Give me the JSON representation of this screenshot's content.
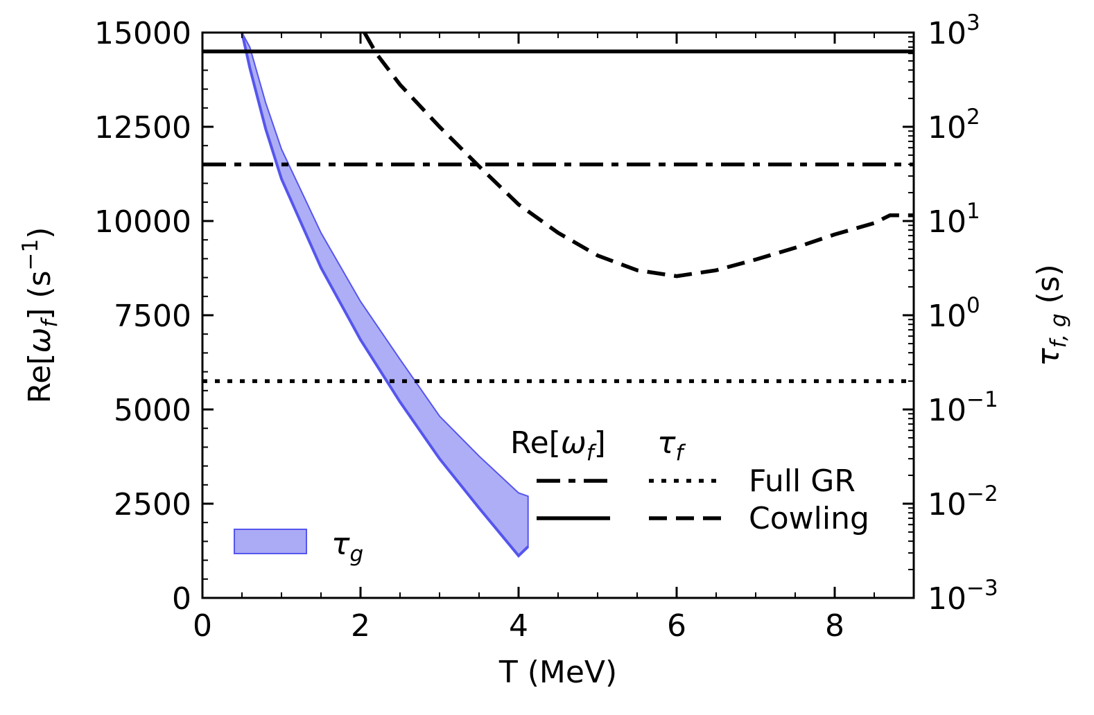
{
  "chart_data": {
    "type": "line",
    "x_axis": {
      "label": "T (MeV)",
      "range": [
        0,
        9
      ],
      "ticks": [
        {
          "value": 0,
          "label": "0"
        },
        {
          "value": 2,
          "label": "2"
        },
        {
          "value": 4,
          "label": "4"
        },
        {
          "value": 6,
          "label": "6"
        },
        {
          "value": 8,
          "label": "8"
        }
      ]
    },
    "y_left": {
      "label": "Re[ω_f] (s⁻¹)",
      "label_parts": {
        "pre": "Re[",
        "omega": "ω",
        "sub": "f",
        "mid": "] (s",
        "sup": "−1",
        "post": ")"
      },
      "range": [
        0,
        15000
      ],
      "ticks": [
        {
          "value": 0,
          "label": "0"
        },
        {
          "value": 2500,
          "label": "2500"
        },
        {
          "value": 5000,
          "label": "5000"
        },
        {
          "value": 7500,
          "label": "7500"
        },
        {
          "value": 10000,
          "label": "10000"
        },
        {
          "value": 12500,
          "label": "12500"
        },
        {
          "value": 15000,
          "label": "15000"
        }
      ]
    },
    "y_right": {
      "label": "τ_{f,g} (s)",
      "label_parts": {
        "tau": "τ",
        "sub": "f, g",
        "post": " (s)"
      },
      "scale": "log",
      "range": [
        0.001,
        1000
      ],
      "ticks": [
        {
          "value": 0.001,
          "base": "10",
          "exp": "−3"
        },
        {
          "value": 0.01,
          "base": "10",
          "exp": "−2"
        },
        {
          "value": 0.1,
          "base": "10",
          "exp": "−1"
        },
        {
          "value": 1,
          "base": "10",
          "exp": "0"
        },
        {
          "value": 10,
          "base": "10",
          "exp": "1"
        },
        {
          "value": 100,
          "base": "10",
          "exp": "2"
        },
        {
          "value": 1000,
          "base": "10",
          "exp": "3"
        }
      ]
    },
    "series": [
      {
        "name": "Re[ω_f] Full GR",
        "axis": "left",
        "style": "dashdot",
        "x": [
          0,
          9
        ],
        "y": [
          11500,
          11500
        ]
      },
      {
        "name": "Re[ω_f] Cowling",
        "axis": "left",
        "style": "solid",
        "x": [
          0,
          9
        ],
        "y": [
          14500,
          14500
        ]
      },
      {
        "name": "τ_f Full GR",
        "axis": "right",
        "style": "dotted",
        "x": [
          0,
          9
        ],
        "y": [
          0.2,
          0.2
        ]
      },
      {
        "name": "τ_f Cowling",
        "axis": "right",
        "style": "dashed",
        "x": [
          2.05,
          2.2,
          2.5,
          3.0,
          3.5,
          4.0,
          4.5,
          5.0,
          5.5,
          6.0,
          6.5,
          7.0,
          7.5,
          8.0,
          8.5,
          8.7,
          9.0
        ],
        "y": [
          1000,
          600,
          280,
          100,
          38,
          15,
          7.5,
          4.3,
          3.0,
          2.6,
          3.0,
          3.9,
          5.2,
          7.2,
          9.5,
          11.5,
          11.5
        ]
      }
    ],
    "bands": [
      {
        "name": "τ_g",
        "axis": "right",
        "color": "#6b6bf2",
        "x": [
          0.5,
          0.6,
          0.8,
          1.0,
          1.5,
          2.0,
          2.5,
          3.0,
          3.5,
          4.0,
          4.12
        ],
        "lower": [
          1000,
          420,
          95,
          28,
          3.2,
          0.55,
          0.12,
          0.03,
          0.009,
          0.0028,
          0.0035
        ],
        "upper": [
          1000,
          700,
          180,
          58,
          7.5,
          1.4,
          0.34,
          0.085,
          0.032,
          0.013,
          0.012
        ]
      }
    ],
    "legend": {
      "position": "bottom-right",
      "header_omega_pre": "Re[",
      "header_omega_sym": "ω",
      "header_omega_sub": "f",
      "header_omega_post": "]",
      "header_tau_sym": "τ",
      "header_tau_sub": "f",
      "rows": [
        "Full GR",
        "Cowling"
      ],
      "band_label_sym": "τ",
      "band_label_sub": "g",
      "band_position": "bottom-left"
    },
    "colors": {
      "lines": "#000000",
      "band_fill": "#aaaaf5",
      "band_edge": "#5555ee"
    }
  }
}
